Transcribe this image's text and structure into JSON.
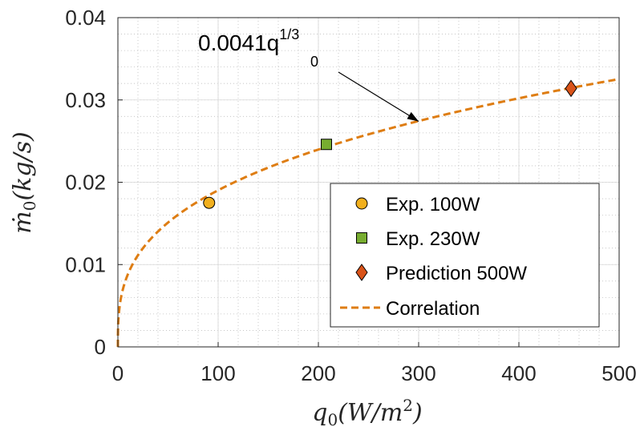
{
  "chart_data": {
    "type": "scatter",
    "xlabel": "q_0(W/m^2)",
    "ylabel": "ṁ_0(kg/s)",
    "xlim": [
      0,
      500
    ],
    "ylim": [
      0,
      0.04
    ],
    "x_ticks": [
      "0",
      "100",
      "200",
      "300",
      "400",
      "500"
    ],
    "y_ticks": [
      "0",
      "0.01",
      "0.02",
      "0.03",
      "0.04"
    ],
    "grid": "minor",
    "legend_placement": "bottom-right",
    "series": [
      {
        "name": "Exp. 100W",
        "marker": "circle",
        "color": "#f2b01e",
        "points": [
          {
            "x": 91,
            "y": 0.0175
          }
        ]
      },
      {
        "name": "Exp. 230W",
        "marker": "square",
        "color": "#77ac30",
        "points": [
          {
            "x": 208,
            "y": 0.0246
          }
        ]
      },
      {
        "name": "Prediction 500W",
        "marker": "diamond",
        "color": "#d95319",
        "points": [
          {
            "x": 452,
            "y": 0.0314
          }
        ]
      },
      {
        "name": "Correlation",
        "line": "dashed",
        "color": "#de7d13",
        "formula": {
          "coefficient": 0.0041,
          "exponent": 0.3333
        }
      }
    ],
    "annotation": {
      "base": "0.0041q",
      "sub": "0",
      "sup": "1/3",
      "points_to": {
        "x": 300,
        "y": 0.0274
      }
    }
  }
}
